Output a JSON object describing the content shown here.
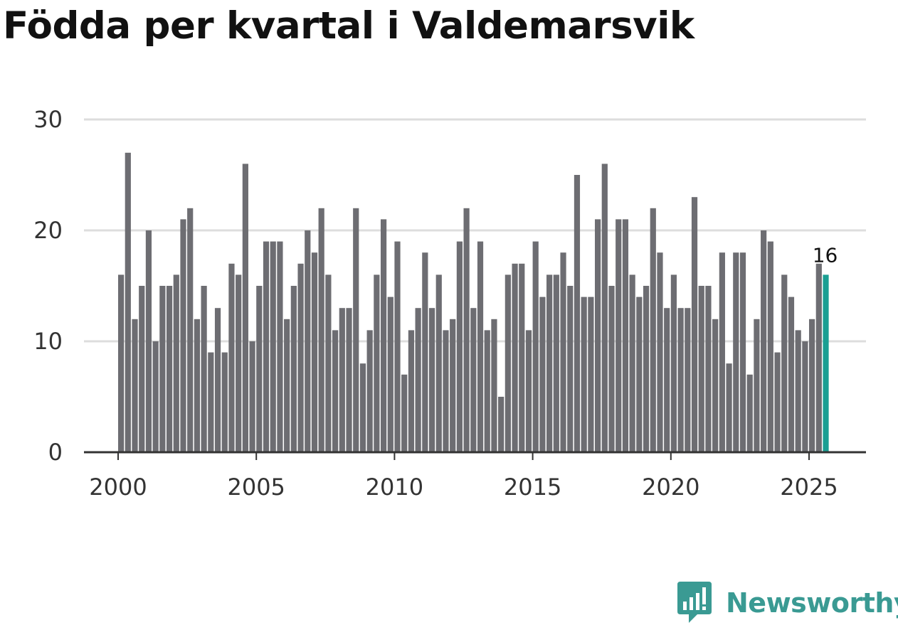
{
  "title": "Födda per kvartal i Valdemarsvik",
  "brand": {
    "name": "Newsworthy",
    "icon": "newsworthy-logo-icon",
    "color": "#3a9a93"
  },
  "colors": {
    "bar": "#6d6d72",
    "highlight": "#1a9f93",
    "grid": "#dddddd",
    "axis": "#333333"
  },
  "chart_data": {
    "type": "bar",
    "title": "Födda per kvartal i Valdemarsvik",
    "xlabel": "",
    "ylabel": "",
    "ylim": [
      0,
      30
    ],
    "yticks": [
      0,
      10,
      20,
      30
    ],
    "xticks": [
      "2000",
      "2005",
      "2010",
      "2015",
      "2020",
      "2025"
    ],
    "start_year": 2000,
    "values": [
      16,
      27,
      12,
      15,
      20,
      10,
      15,
      15,
      16,
      21,
      22,
      12,
      15,
      9,
      13,
      9,
      17,
      16,
      26,
      10,
      15,
      19,
      19,
      19,
      12,
      15,
      17,
      20,
      18,
      22,
      16,
      11,
      13,
      13,
      22,
      8,
      11,
      16,
      21,
      14,
      19,
      7,
      11,
      13,
      18,
      13,
      16,
      11,
      12,
      19,
      22,
      13,
      19,
      11,
      12,
      5,
      16,
      17,
      17,
      11,
      19,
      14,
      16,
      16,
      18,
      15,
      25,
      14,
      14,
      21,
      26,
      15,
      21,
      21,
      16,
      14,
      15,
      22,
      18,
      13,
      16,
      13,
      13,
      23,
      15,
      15,
      12,
      18,
      8,
      18,
      18,
      7,
      12,
      20,
      19,
      9,
      16,
      14,
      11,
      10,
      12,
      17,
      16
    ],
    "highlight_label": "16",
    "grid": true
  }
}
